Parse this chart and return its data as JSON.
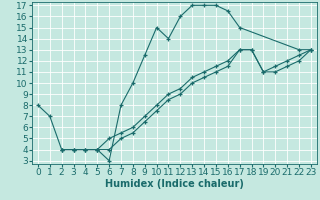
{
  "xlabel": "Humidex (Indice chaleur)",
  "xlim": [
    -0.5,
    23.5
  ],
  "ylim": [
    2.7,
    17.3
  ],
  "xticks": [
    0,
    1,
    2,
    3,
    4,
    5,
    6,
    7,
    8,
    9,
    10,
    11,
    12,
    13,
    14,
    15,
    16,
    17,
    18,
    19,
    20,
    21,
    22,
    23
  ],
  "yticks": [
    3,
    4,
    5,
    6,
    7,
    8,
    9,
    10,
    11,
    12,
    13,
    14,
    15,
    16,
    17
  ],
  "bg_color": "#c5e8e0",
  "line_color": "#1a6b6b",
  "grid_color": "#ffffff",
  "series": [
    {
      "x": [
        0,
        1,
        2,
        3,
        4,
        5,
        6,
        7,
        8,
        9,
        10,
        11,
        12,
        13,
        14,
        15,
        16,
        17,
        22,
        23
      ],
      "y": [
        8,
        7,
        4,
        4,
        4,
        4,
        3,
        8,
        10,
        12.5,
        15,
        14,
        16,
        17,
        17,
        17,
        16.5,
        15,
        13,
        13
      ]
    },
    {
      "x": [
        2,
        3,
        4,
        5,
        6,
        7,
        8,
        9,
        10,
        11,
        12,
        13,
        14,
        15,
        16,
        17,
        18,
        19,
        20,
        21,
        22,
        23
      ],
      "y": [
        4,
        4,
        4,
        4,
        4,
        5,
        5.5,
        6.5,
        7.5,
        8.5,
        9,
        10,
        10.5,
        11,
        11.5,
        13,
        13,
        11,
        11,
        11.5,
        12,
        13
      ]
    },
    {
      "x": [
        2,
        3,
        4,
        5,
        6,
        7,
        8,
        9,
        10,
        11,
        12,
        13,
        14,
        15,
        16,
        17,
        18,
        19,
        20,
        21,
        22,
        23
      ],
      "y": [
        4,
        4,
        4,
        4,
        5,
        5.5,
        6,
        7,
        8,
        9,
        9.5,
        10.5,
        11,
        11.5,
        12,
        13,
        13,
        11,
        11.5,
        12,
        12.5,
        13
      ]
    }
  ],
  "font_size": 6.5,
  "xlabel_font_size": 7
}
